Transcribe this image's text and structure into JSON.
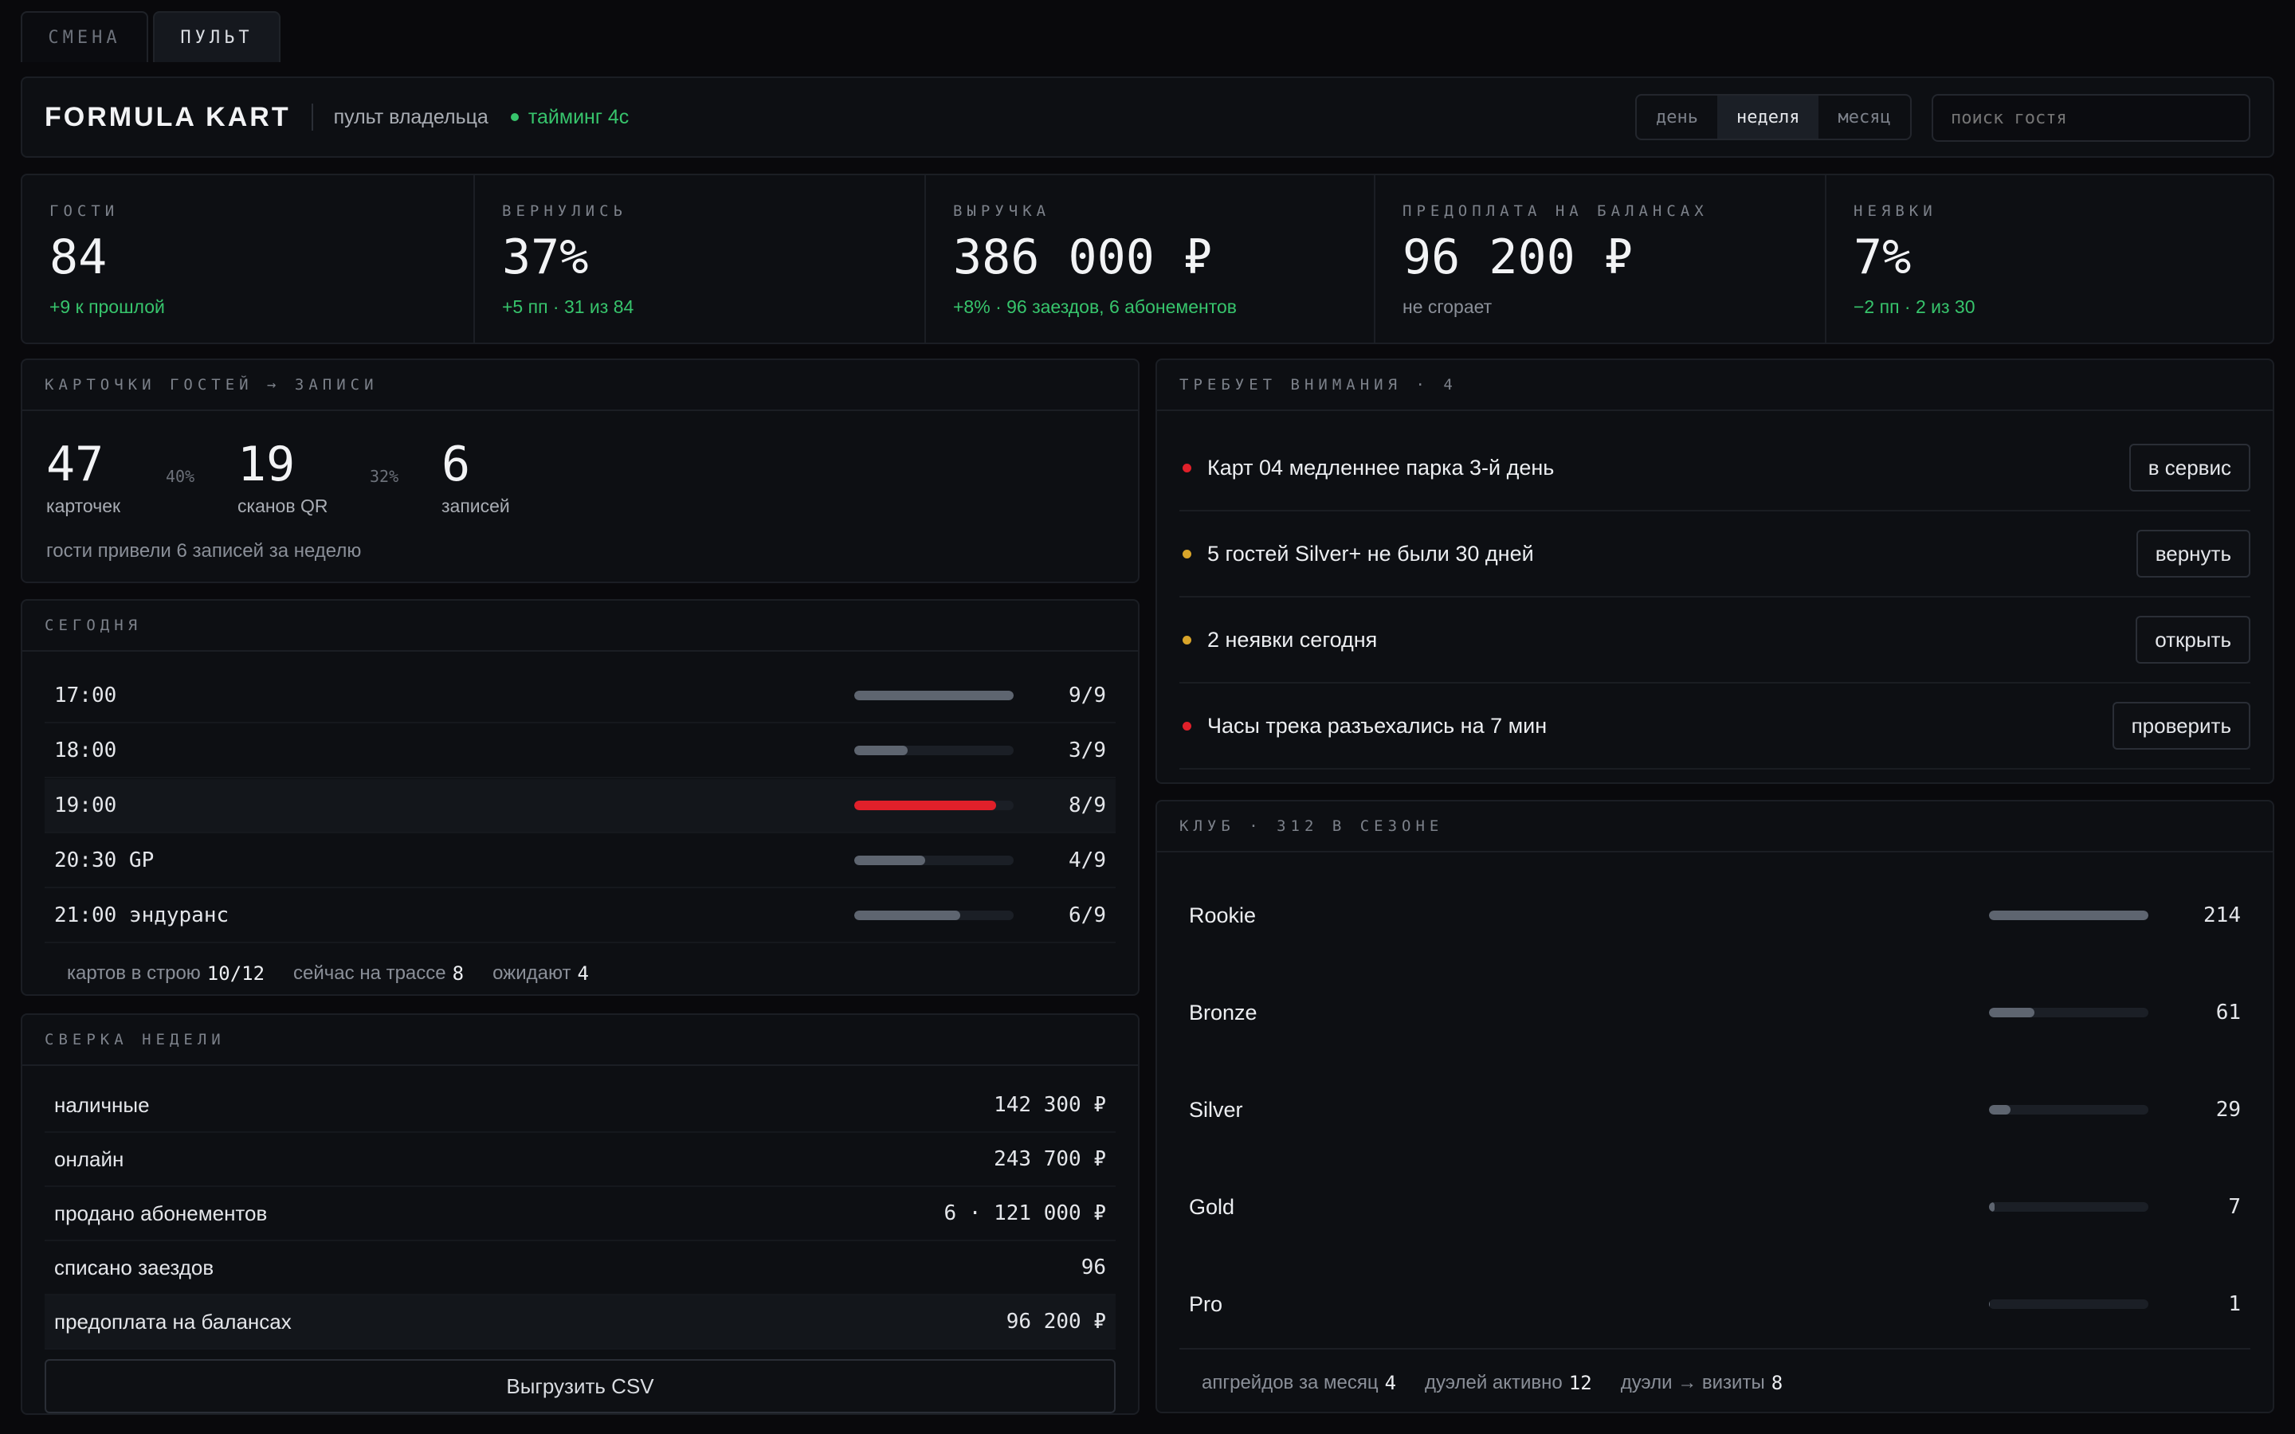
{
  "tabs": [
    {
      "label": "СМЕНА",
      "active": false
    },
    {
      "label": "ПУЛЬТ",
      "active": true
    }
  ],
  "header": {
    "brand": "FORMULA KART",
    "subtitle": "пульт владельца",
    "timing": "тайминг 4с",
    "periods": [
      "день",
      "неделя",
      "месяц"
    ],
    "active_period": "неделя",
    "search_placeholder": "поиск гостя"
  },
  "kpis": [
    {
      "label": "ГОСТИ",
      "value": "84",
      "sub": "+9 к прошлой",
      "sub_color": "green"
    },
    {
      "label": "ВЕРНУЛИСЬ",
      "value": "37%",
      "sub": "+5 пп · 31 из 84",
      "sub_color": "green"
    },
    {
      "label": "ВЫРУЧКА",
      "value": "386 000 ₽",
      "sub": "+8% · 96 заездов, 6 абонементов",
      "sub_color": "green"
    },
    {
      "label": "ПРЕДОПЛАТА НА БАЛАНСАХ",
      "value": "96 200 ₽",
      "sub": "не сгорает",
      "sub_color": "muted"
    },
    {
      "label": "НЕЯВКИ",
      "value": "7%",
      "sub": "−2 пп · 2 из 30",
      "sub_color": "green"
    }
  ],
  "funnel": {
    "title": "КАРТОЧКИ ГОСТЕЙ → ЗАПИСИ",
    "steps": [
      {
        "value": "47",
        "label": "карточек"
      },
      {
        "value": "19",
        "label": "сканов QR"
      },
      {
        "value": "6",
        "label": "записей"
      }
    ],
    "rates": [
      "40%",
      "32%"
    ],
    "note": "гости привели 6 записей за неделю"
  },
  "today": {
    "title": "СЕГОДНЯ",
    "slots": [
      {
        "time": "17:00",
        "count": "9/9",
        "fill": 1.0,
        "highlight": false
      },
      {
        "time": "18:00",
        "count": "3/9",
        "fill": 0.333,
        "highlight": false
      },
      {
        "time": "19:00",
        "count": "8/9",
        "fill": 0.889,
        "highlight": true
      },
      {
        "time": "20:30 GP",
        "count": "4/9",
        "fill": 0.444,
        "highlight": false
      },
      {
        "time": "21:00 эндуранс",
        "count": "6/9",
        "fill": 0.667,
        "highlight": false
      }
    ],
    "footer": [
      {
        "label": "картов в строю",
        "value": "10/12"
      },
      {
        "label": "сейчас на трассе",
        "value": "8"
      },
      {
        "label": "ожидают",
        "value": "4"
      }
    ]
  },
  "recon": {
    "title": "СВЕРКА НЕДЕЛИ",
    "rows": [
      {
        "label": "наличные",
        "value": "142 300 ₽"
      },
      {
        "label": "онлайн",
        "value": "243 700 ₽"
      },
      {
        "label": "продано абонементов",
        "value": "6 · 121 000 ₽"
      },
      {
        "label": "списано заездов",
        "value": "96"
      },
      {
        "label": "предоплата на балансах",
        "value": "96 200 ₽"
      }
    ],
    "export_label": "Выгрузить CSV"
  },
  "attention": {
    "title": "ТРЕБУЕТ ВНИМАНИЯ · 4",
    "items": [
      {
        "text": "Карт 04 медленнее парка 3-й день",
        "action": "в сервис",
        "color": "#e0202a"
      },
      {
        "text": "5 гостей Silver+ не были 30 дней",
        "action": "вернуть",
        "color": "#d9a52a"
      },
      {
        "text": "2 неявки сегодня",
        "action": "открыть",
        "color": "#d9a52a"
      },
      {
        "text": "Часы трека разъехались на 7 мин",
        "action": "проверить",
        "color": "#e0202a"
      }
    ]
  },
  "club": {
    "title": "КЛУБ · 312 В СЕЗОНЕ",
    "tiers": [
      {
        "name": "Rookie",
        "count": "214",
        "fill": 1.0
      },
      {
        "name": "Bronze",
        "count": "61",
        "fill": 0.285
      },
      {
        "name": "Silver",
        "count": "29",
        "fill": 0.136
      },
      {
        "name": "Gold",
        "count": "7",
        "fill": 0.033
      },
      {
        "name": "Pro",
        "count": "1",
        "fill": 0.005
      }
    ],
    "footer": [
      {
        "label": "апгрейдов за месяц",
        "value": "4"
      },
      {
        "label": "дуэлей активно",
        "value": "12"
      },
      {
        "label": "дуэли → визиты",
        "value": "8"
      }
    ]
  },
  "colors": {
    "accent_red": "#e0202a",
    "positive": "#37c46c",
    "warning": "#d9a52a"
  }
}
